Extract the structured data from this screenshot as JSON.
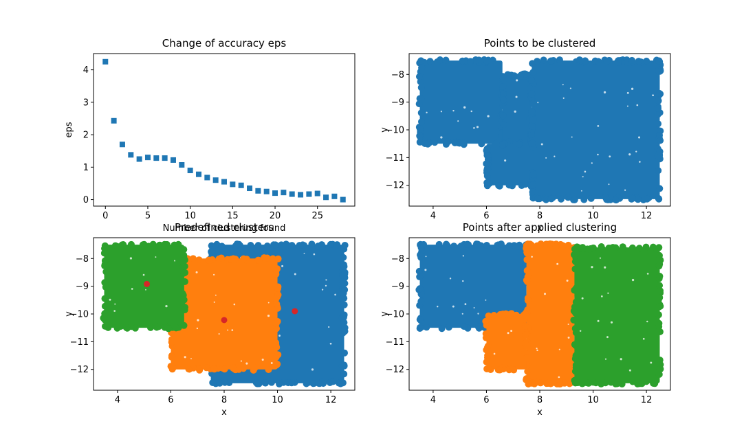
{
  "colors": {
    "blue": "#1f77b4",
    "orange": "#ff7f0e",
    "green": "#2ca02c",
    "red": "#d62728"
  },
  "chart_data": [
    {
      "type": "scatter",
      "title": "Change of accuracy eps",
      "xlabel": "Number of clustering found",
      "ylabel": "eps",
      "xlim": [
        -1.4,
        29.4
      ],
      "ylim": [
        -0.2,
        4.5
      ],
      "xticks": [
        0,
        5,
        10,
        15,
        20,
        25
      ],
      "yticks": [
        0,
        1,
        2,
        3,
        4
      ],
      "marker": "square",
      "series": [
        {
          "color": "#1f77b4",
          "x": [
            0,
            1,
            2,
            3,
            4,
            5,
            6,
            7,
            8,
            9,
            10,
            11,
            12,
            13,
            14,
            15,
            16,
            17,
            18,
            19,
            20,
            21,
            22,
            23,
            24,
            25,
            26,
            27,
            28
          ],
          "y": [
            4.25,
            2.43,
            1.7,
            1.38,
            1.25,
            1.3,
            1.28,
            1.28,
            1.22,
            1.07,
            0.9,
            0.78,
            0.68,
            0.6,
            0.55,
            0.47,
            0.44,
            0.35,
            0.27,
            0.25,
            0.2,
            0.22,
            0.17,
            0.15,
            0.17,
            0.19,
            0.07,
            0.1,
            0.0
          ]
        }
      ]
    },
    {
      "type": "scatter",
      "title": "Points to be clustered",
      "xlabel": "x",
      "ylabel": "y",
      "xlim": [
        3.1,
        12.9
      ],
      "ylim": [
        -12.75,
        -7.25
      ],
      "xticks": [
        4,
        6,
        8,
        10,
        12
      ],
      "yticks": [
        -8,
        -9,
        -10,
        -11,
        -12
      ],
      "marker": "circle",
      "regions": [
        {
          "color": "#1f77b4",
          "x": [
            3.5,
            6.6
          ],
          "y": [
            -10.5,
            -7.5
          ]
        },
        {
          "color": "#1f77b4",
          "x": [
            6.6,
            7.7
          ],
          "y": [
            -10.5,
            -8.0
          ]
        },
        {
          "color": "#1f77b4",
          "x": [
            6.0,
            10.0
          ],
          "y": [
            -12.0,
            -10.5
          ]
        },
        {
          "color": "#1f77b4",
          "x": [
            7.7,
            12.5
          ],
          "y": [
            -12.5,
            -7.5
          ]
        }
      ]
    },
    {
      "type": "scatter",
      "title": "Predefined clusters",
      "xlabel": "x",
      "ylabel": "y",
      "xlim": [
        3.1,
        12.9
      ],
      "ylim": [
        -12.75,
        -7.25
      ],
      "xticks": [
        4,
        6,
        8,
        10,
        12
      ],
      "yticks": [
        -8,
        -9,
        -10,
        -11,
        -12
      ],
      "marker": "circle",
      "regions": [
        {
          "color": "#1f77b4",
          "x": [
            7.5,
            12.5
          ],
          "y": [
            -12.5,
            -7.5
          ]
        },
        {
          "color": "#ff7f0e",
          "x": [
            6.0,
            10.0
          ],
          "y": [
            -12.0,
            -8.0
          ]
        },
        {
          "color": "#2ca02c",
          "x": [
            3.5,
            6.5
          ],
          "y": [
            -10.5,
            -7.5
          ]
        }
      ],
      "centroids": {
        "color": "#d62728",
        "x": [
          5.1,
          8.0,
          10.65
        ],
        "y": [
          -8.92,
          -10.22,
          -9.9
        ]
      }
    },
    {
      "type": "scatter",
      "title": "Points after applied clustering",
      "xlabel": "x",
      "ylabel": "y",
      "xlim": [
        3.1,
        12.9
      ],
      "ylim": [
        -12.75,
        -7.25
      ],
      "xticks": [
        4,
        6,
        8,
        10,
        12
      ],
      "yticks": [
        -8,
        -9,
        -10,
        -11,
        -12
      ],
      "marker": "circle",
      "regions": [
        {
          "color": "#1f77b4",
          "x": [
            3.5,
            7.5
          ],
          "y": [
            -10.5,
            -7.5
          ]
        },
        {
          "color": "#ff7f0e",
          "x": [
            7.5,
            9.3
          ],
          "y": [
            -12.5,
            -7.5
          ]
        },
        {
          "color": "#ff7f0e",
          "x": [
            6.0,
            7.5
          ],
          "y": [
            -12.0,
            -10.0
          ]
        },
        {
          "color": "#2ca02c",
          "x": [
            9.3,
            12.5
          ],
          "y": [
            -12.5,
            -7.6
          ]
        }
      ]
    }
  ]
}
